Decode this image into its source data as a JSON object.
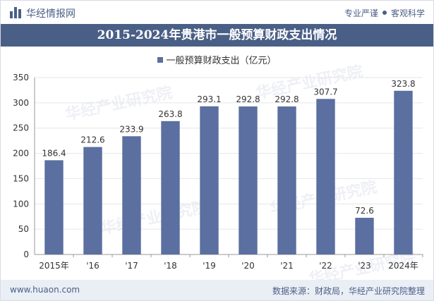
{
  "header": {
    "brand": "华经情报网",
    "tagline_left": "专业严谨",
    "tagline_right": "客观科学"
  },
  "watermark": "华经产业研究院",
  "chart_data": {
    "type": "bar",
    "title": "2015-2024年贵港市一般预算财政支出情况",
    "series": [
      {
        "name": "一般预算财政支出（亿元）",
        "values": [
          186.4,
          212.6,
          233.9,
          263.8,
          293.1,
          292.8,
          292.8,
          307.7,
          72.6,
          323.8
        ]
      }
    ],
    "categories": [
      "2015年",
      "'16",
      "'17",
      "'18",
      "'19",
      "'20",
      "'21",
      "'22",
      "'23",
      "2024年"
    ],
    "ylim": [
      0,
      350
    ],
    "yticks": [
      0,
      50,
      100,
      150,
      200,
      250,
      300,
      350
    ],
    "grid": true,
    "legend_position": "top-center",
    "bar_color": "#5b6fa0"
  },
  "footer": {
    "url": "www.huaon.com",
    "source": "数据来源：财政局，华经产业研究院整理"
  }
}
